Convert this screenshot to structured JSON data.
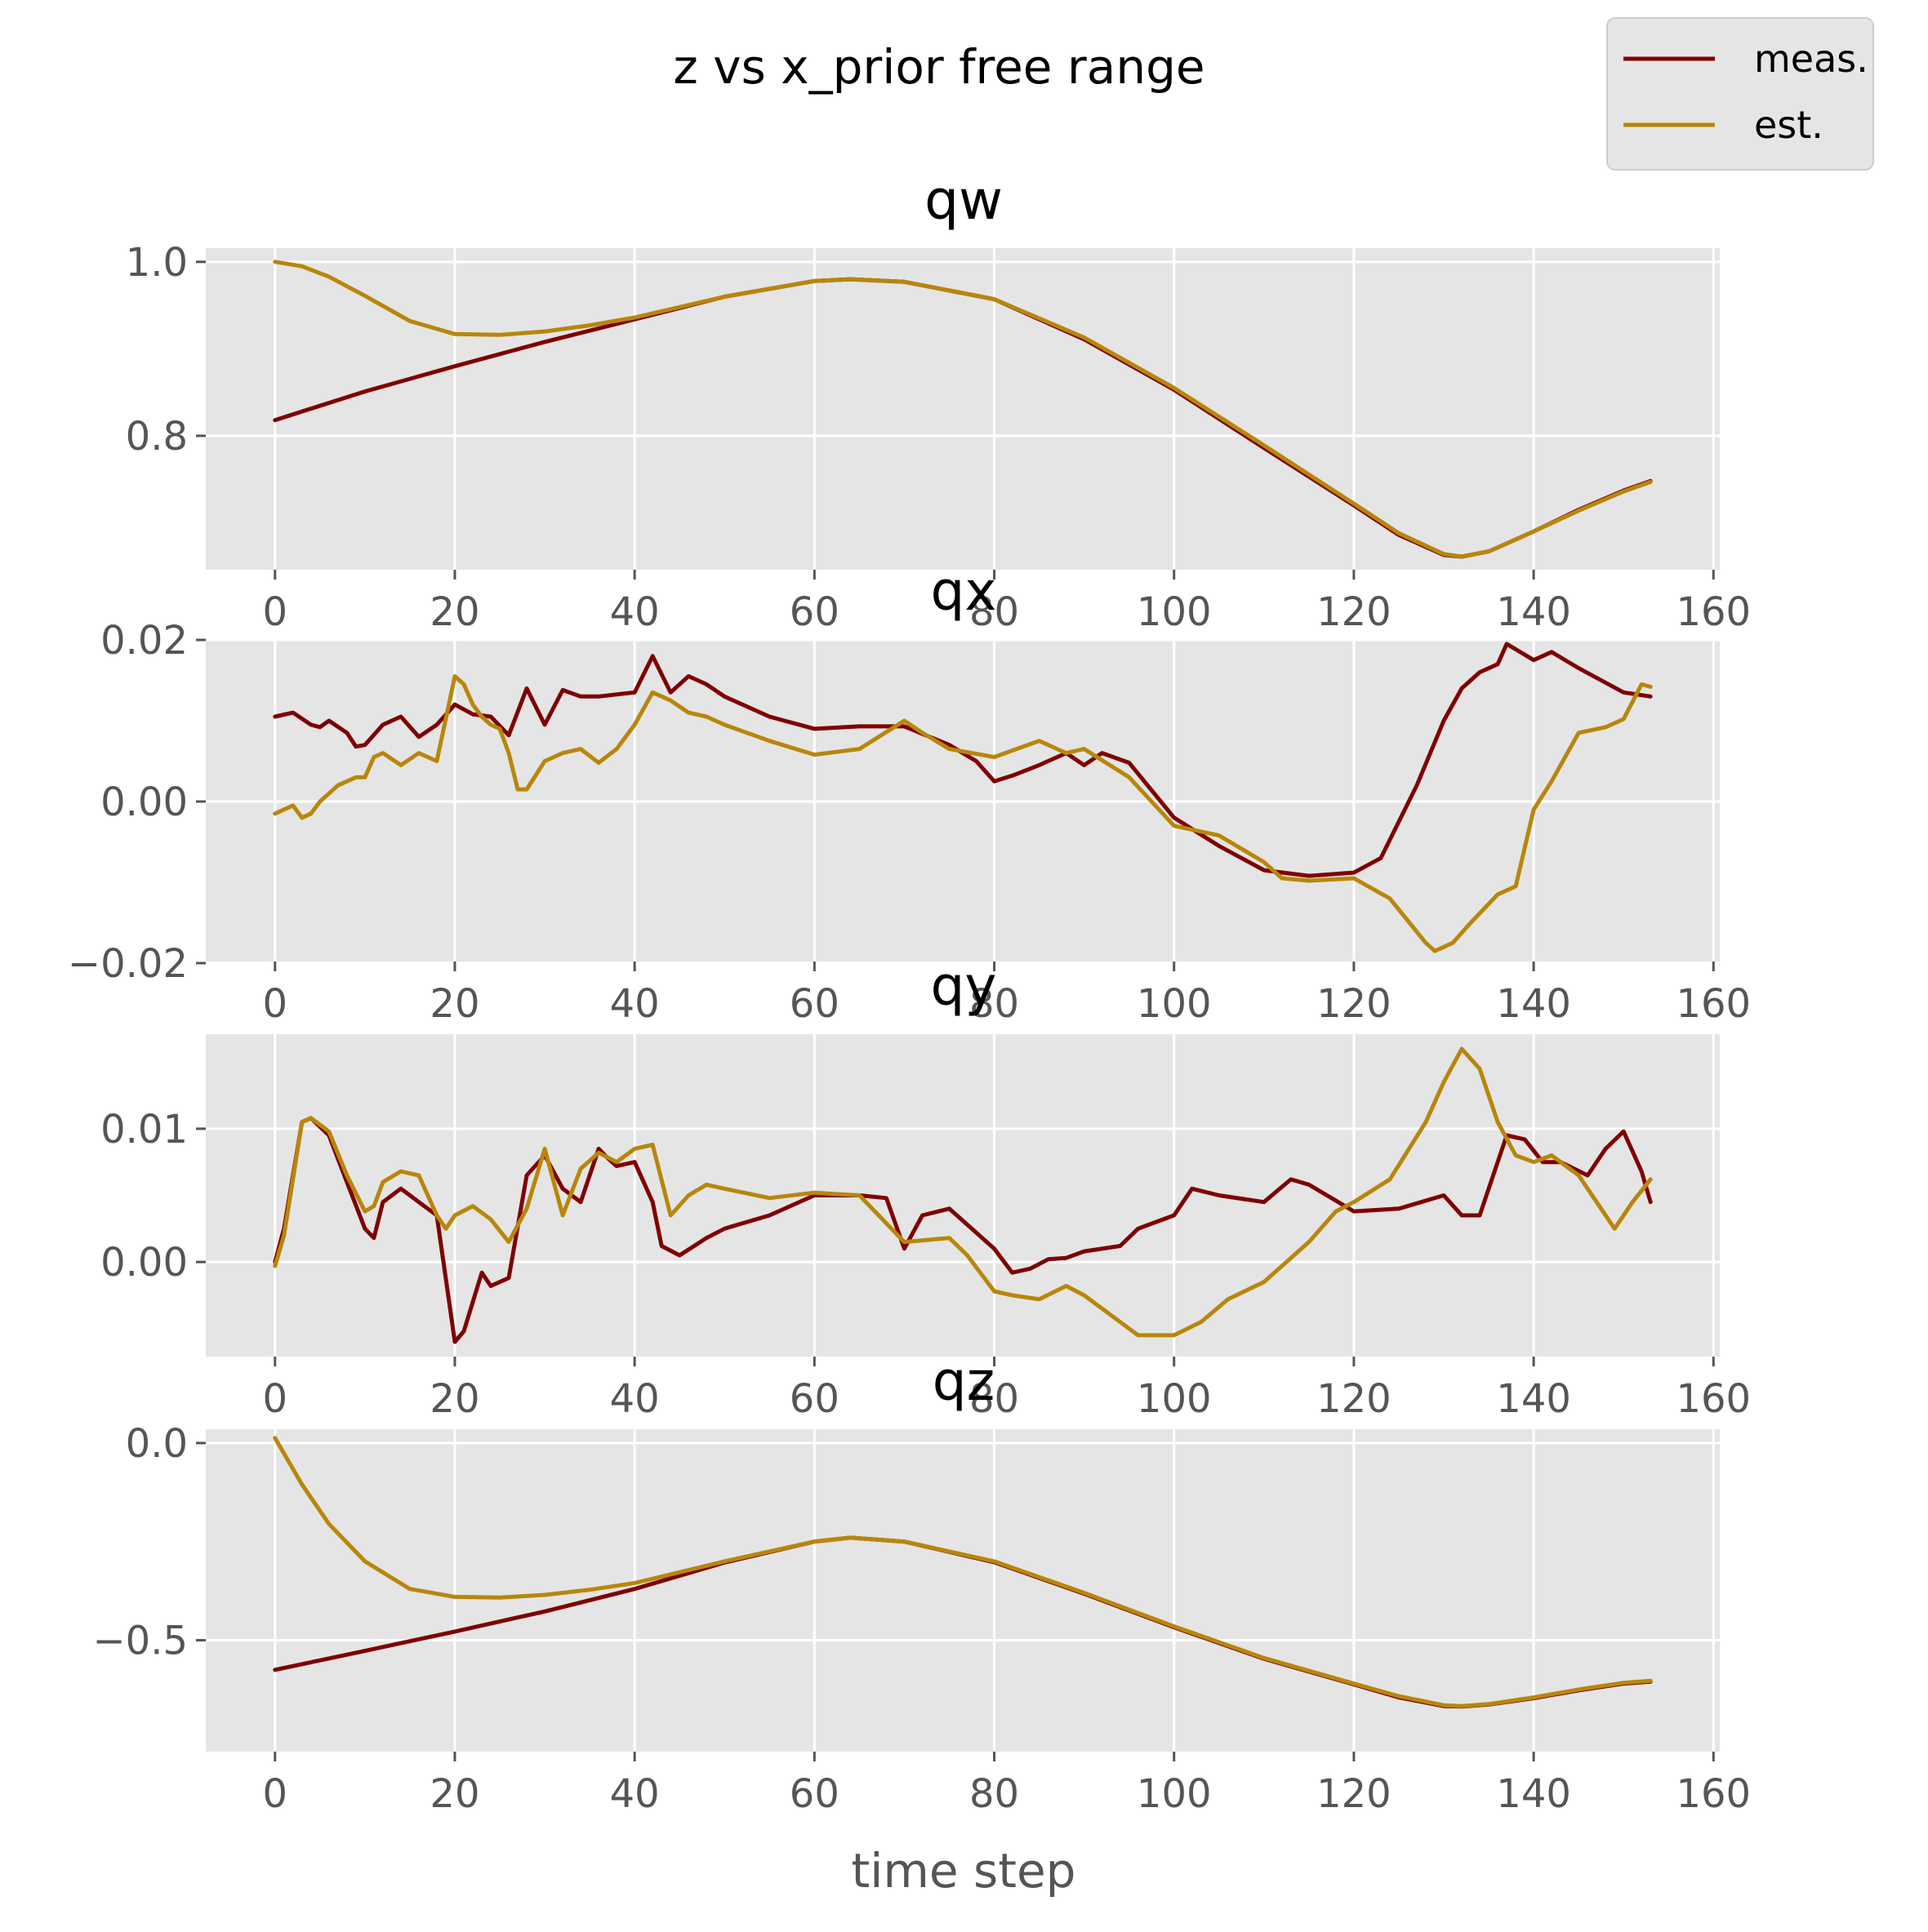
{
  "figure": {
    "suptitle": "z vs x_prior free range",
    "xlabel": "time step",
    "legend": {
      "placement": "top-right",
      "entries": [
        {
          "label": "meas.",
          "color": "#7f0000"
        },
        {
          "label": "est.",
          "color": "#b8860b"
        }
      ]
    },
    "colors": {
      "meas": "#7f0000",
      "est": "#b8860b",
      "axes_bg": "#e5e5e5",
      "grid": "#ffffff",
      "tick": "#555555"
    }
  },
  "chart_data": [
    {
      "type": "line",
      "title": "qw",
      "xlim": [
        -7.7,
        160.7
      ],
      "ylim": [
        0.646,
        1.0158
      ],
      "xticks": [
        0,
        20,
        40,
        60,
        80,
        100,
        120,
        140,
        160
      ],
      "yticks": [
        0.8,
        1.0
      ],
      "ytick_labels": [
        "0.8",
        "1.0"
      ],
      "grid": true,
      "series": [
        {
          "name": "meas.",
          "color": "#7f0000",
          "x": [
            0,
            10,
            20,
            30,
            40,
            50,
            60,
            64,
            70,
            80,
            90,
            100,
            110,
            120,
            125,
            130,
            132,
            135,
            140,
            145,
            150,
            153
          ],
          "y": [
            0.818,
            0.851,
            0.88,
            0.908,
            0.934,
            0.96,
            0.978,
            0.98,
            0.977,
            0.957,
            0.911,
            0.853,
            0.786,
            0.72,
            0.686,
            0.663,
            0.661,
            0.667,
            0.69,
            0.715,
            0.737,
            0.748
          ]
        },
        {
          "name": "est.",
          "color": "#b8860b",
          "x": [
            0,
            3,
            6,
            10,
            15,
            20,
            25,
            30,
            35,
            40,
            50,
            60,
            64,
            70,
            80,
            90,
            100,
            110,
            120,
            125,
            130,
            132,
            135,
            140,
            145,
            150,
            153
          ],
          "y": [
            1.0,
            0.995,
            0.983,
            0.961,
            0.932,
            0.917,
            0.916,
            0.92,
            0.927,
            0.936,
            0.96,
            0.978,
            0.98,
            0.977,
            0.957,
            0.913,
            0.855,
            0.789,
            0.722,
            0.688,
            0.664,
            0.661,
            0.667,
            0.69,
            0.714,
            0.736,
            0.747
          ]
        }
      ]
    },
    {
      "type": "line",
      "title": "qx",
      "xlim": [
        -7.7,
        160.7
      ],
      "ylim": [
        -0.0198,
        0.0201
      ],
      "xticks": [
        0,
        20,
        40,
        60,
        80,
        100,
        120,
        140,
        160
      ],
      "yticks": [
        -0.02,
        0.0,
        0.02
      ],
      "ytick_labels": [
        "−0.02",
        "0.00",
        "0.02"
      ],
      "grid": true,
      "series": [
        {
          "name": "meas.",
          "color": "#7f0000",
          "x": [
            0,
            2,
            4,
            5,
            6,
            8,
            9,
            10,
            12,
            14,
            16,
            18,
            20,
            22,
            24,
            26,
            28,
            30,
            32,
            34,
            36,
            40,
            42,
            44,
            46,
            48,
            50,
            55,
            60,
            65,
            70,
            75,
            78,
            80,
            82,
            85,
            88,
            90,
            92,
            95,
            100,
            105,
            110,
            115,
            120,
            123,
            127,
            130,
            132,
            134,
            136,
            137,
            140,
            142,
            145,
            150,
            153
          ],
          "y": [
            0.0105,
            0.011,
            0.0095,
            0.0092,
            0.01,
            0.0085,
            0.0068,
            0.007,
            0.0095,
            0.0105,
            0.008,
            0.0095,
            0.012,
            0.0108,
            0.0105,
            0.0082,
            0.014,
            0.0095,
            0.0138,
            0.013,
            0.013,
            0.0135,
            0.018,
            0.0135,
            0.0155,
            0.0145,
            0.013,
            0.0105,
            0.009,
            0.0093,
            0.0093,
            0.007,
            0.005,
            0.0025,
            0.0032,
            0.0045,
            0.006,
            0.0045,
            0.006,
            0.0048,
            -0.002,
            -0.0055,
            -0.0085,
            -0.0092,
            -0.0088,
            -0.007,
            0.002,
            0.01,
            0.014,
            0.016,
            0.017,
            0.0195,
            0.0175,
            0.0185,
            0.0165,
            0.0135,
            0.013
          ]
        },
        {
          "name": "est.",
          "color": "#b8860b",
          "x": [
            0,
            2,
            3,
            4,
            5,
            7,
            9,
            10,
            11,
            12,
            14,
            16,
            18,
            20,
            21,
            22,
            23,
            24,
            25,
            26,
            27,
            28,
            30,
            32,
            34,
            36,
            38,
            40,
            42,
            44,
            46,
            48,
            50,
            55,
            60,
            65,
            70,
            72,
            75,
            80,
            85,
            88,
            90,
            95,
            100,
            105,
            110,
            112,
            115,
            120,
            124,
            128,
            129,
            131,
            133,
            136,
            138,
            140,
            142,
            145,
            148,
            150,
            152,
            153
          ],
          "y": [
            -0.0015,
            -0.0005,
            -0.002,
            -0.0015,
            0.0,
            0.002,
            0.003,
            0.003,
            0.0055,
            0.006,
            0.0045,
            0.006,
            0.005,
            0.0155,
            0.0145,
            0.012,
            0.0105,
            0.0095,
            0.009,
            0.006,
            0.0015,
            0.0015,
            0.005,
            0.006,
            0.0065,
            0.0048,
            0.0065,
            0.0095,
            0.0135,
            0.0125,
            0.011,
            0.0105,
            0.0095,
            0.0075,
            0.0058,
            0.0065,
            0.01,
            0.0085,
            0.0065,
            0.0055,
            0.0075,
            0.006,
            0.0065,
            0.003,
            -0.003,
            -0.0042,
            -0.0075,
            -0.0095,
            -0.0098,
            -0.0095,
            -0.012,
            -0.0175,
            -0.0185,
            -0.0175,
            -0.015,
            -0.0115,
            -0.0105,
            -0.001,
            0.0025,
            0.0085,
            0.0092,
            0.0102,
            0.0145,
            0.0142
          ]
        }
      ]
    },
    {
      "type": "line",
      "title": "qy",
      "xlim": [
        -7.7,
        160.7
      ],
      "ylim": [
        -0.0071,
        0.0171
      ],
      "xticks": [
        0,
        20,
        40,
        60,
        80,
        100,
        120,
        140,
        160
      ],
      "yticks": [
        0.0,
        0.01
      ],
      "ytick_labels": [
        "0.00",
        "0.01"
      ],
      "grid": true,
      "series": [
        {
          "name": "meas.",
          "color": "#7f0000",
          "x": [
            0,
            1,
            3,
            4,
            6,
            8,
            10,
            11,
            12,
            14,
            16,
            18,
            20,
            21,
            23,
            24,
            26,
            28,
            30,
            32,
            34,
            36,
            37,
            38,
            40,
            42,
            43,
            45,
            48,
            50,
            55,
            60,
            65,
            68,
            70,
            72,
            75,
            80,
            82,
            84,
            86,
            88,
            90,
            94,
            96,
            100,
            102,
            105,
            110,
            113,
            115,
            120,
            125,
            130,
            132,
            134,
            137,
            139,
            141,
            143,
            146,
            148,
            150,
            152,
            153
          ],
          "y": [
            0.0,
            0.0025,
            0.0105,
            0.0108,
            0.0095,
            0.006,
            0.0025,
            0.0018,
            0.0045,
            0.0055,
            0.0045,
            0.0035,
            -0.006,
            -0.0052,
            -0.0008,
            -0.0018,
            -0.0012,
            0.0065,
            0.008,
            0.0055,
            0.0045,
            0.0085,
            0.0078,
            0.0072,
            0.0075,
            0.0045,
            0.0012,
            0.0005,
            0.0018,
            0.0025,
            0.0035,
            0.005,
            0.005,
            0.0048,
            0.001,
            0.0035,
            0.004,
            0.001,
            -0.0008,
            -0.0005,
            0.0002,
            0.0003,
            0.0008,
            0.0012,
            0.0025,
            0.0035,
            0.0055,
            0.005,
            0.0045,
            0.0062,
            0.0058,
            0.0038,
            0.004,
            0.005,
            0.0035,
            0.0035,
            0.0095,
            0.0092,
            0.0075,
            0.0075,
            0.0065,
            0.0085,
            0.0098,
            0.0068,
            0.0045
          ]
        },
        {
          "name": "est.",
          "color": "#b8860b",
          "x": [
            0,
            1,
            3,
            4,
            6,
            8,
            10,
            11,
            12,
            14,
            16,
            18,
            19,
            20,
            22,
            24,
            26,
            28,
            30,
            32,
            34,
            36,
            38,
            40,
            42,
            44,
            46,
            48,
            50,
            55,
            60,
            65,
            70,
            75,
            77,
            80,
            82,
            85,
            88,
            90,
            94,
            96,
            100,
            103,
            106,
            110,
            115,
            118,
            120,
            124,
            128,
            130,
            132,
            134,
            136,
            138,
            140,
            142,
            145,
            147,
            149,
            151,
            153
          ],
          "y": [
            -0.0003,
            0.002,
            0.0105,
            0.0108,
            0.0098,
            0.0065,
            0.0038,
            0.0042,
            0.006,
            0.0068,
            0.0065,
            0.0035,
            0.0025,
            0.0035,
            0.0042,
            0.0032,
            0.0015,
            0.004,
            0.0085,
            0.0035,
            0.007,
            0.0082,
            0.0075,
            0.0085,
            0.0088,
            0.0035,
            0.005,
            0.0058,
            0.0055,
            0.0048,
            0.0052,
            0.005,
            0.0015,
            0.0018,
            0.0005,
            -0.0022,
            -0.0025,
            -0.0028,
            -0.0018,
            -0.0025,
            -0.0045,
            -0.0055,
            -0.0055,
            -0.0045,
            -0.0028,
            -0.0015,
            0.0015,
            0.0038,
            0.0045,
            0.0062,
            0.0105,
            0.0135,
            0.016,
            0.0145,
            0.0105,
            0.008,
            0.0075,
            0.008,
            0.0065,
            0.0045,
            0.0025,
            0.0045,
            0.0062
          ]
        }
      ]
    },
    {
      "type": "line",
      "title": "qz",
      "xlim": [
        -7.7,
        160.7
      ],
      "ylim": [
        -0.7825,
        0.0351
      ],
      "xticks": [
        0,
        20,
        40,
        60,
        80,
        100,
        120,
        140,
        160
      ],
      "yticks": [
        -0.5,
        0.0
      ],
      "ytick_labels": [
        "−0.5",
        "0.0"
      ],
      "grid": true,
      "series": [
        {
          "name": "meas.",
          "color": "#7f0000",
          "x": [
            0,
            10,
            20,
            30,
            40,
            50,
            60,
            64,
            70,
            80,
            90,
            100,
            110,
            120,
            125,
            130,
            132,
            135,
            140,
            145,
            150,
            153
          ],
          "y": [
            -0.575,
            -0.527,
            -0.478,
            -0.427,
            -0.37,
            -0.303,
            -0.25,
            -0.24,
            -0.25,
            -0.302,
            -0.382,
            -0.467,
            -0.547,
            -0.612,
            -0.645,
            -0.667,
            -0.668,
            -0.663,
            -0.647,
            -0.627,
            -0.61,
            -0.605
          ]
        },
        {
          "name": "est.",
          "color": "#b8860b",
          "x": [
            0,
            3,
            6,
            10,
            15,
            20,
            25,
            30,
            35,
            40,
            50,
            60,
            64,
            70,
            80,
            90,
            100,
            110,
            120,
            125,
            130,
            132,
            135,
            140,
            145,
            150,
            153
          ],
          "y": [
            0.013,
            -0.105,
            -0.205,
            -0.3,
            -0.37,
            -0.39,
            -0.392,
            -0.385,
            -0.372,
            -0.355,
            -0.3,
            -0.25,
            -0.24,
            -0.25,
            -0.3,
            -0.38,
            -0.465,
            -0.545,
            -0.61,
            -0.642,
            -0.665,
            -0.667,
            -0.662,
            -0.645,
            -0.625,
            -0.608,
            -0.603
          ]
        }
      ]
    }
  ]
}
